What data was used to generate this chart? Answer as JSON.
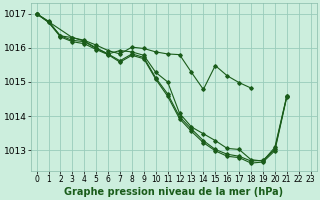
{
  "background_color": "#cceedd",
  "grid_color": "#99ccbb",
  "line_color": "#1a5c1a",
  "title": "Graphe pression niveau de la mer (hPa)",
  "xlim": [
    -0.5,
    23.5
  ],
  "ylim": [
    1012.4,
    1017.3
  ],
  "yticks": [
    1013,
    1014,
    1015,
    1016,
    1017
  ],
  "xticks": [
    0,
    1,
    2,
    3,
    4,
    5,
    6,
    7,
    8,
    9,
    10,
    11,
    12,
    13,
    14,
    15,
    16,
    17,
    18,
    19,
    20,
    21,
    22,
    23
  ],
  "series": [
    [
      1017.0,
      1016.75,
      1016.35,
      1016.3,
      1016.2,
      1016.0,
      1015.82,
      1015.92,
      1015.88,
      1015.78,
      1015.28,
      1015.0,
      1014.08,
      1013.68,
      1013.48,
      1013.28,
      1013.05,
      1013.02,
      1012.72,
      1012.68,
      1013.08,
      1014.58,
      null,
      null
    ],
    [
      1017.0,
      1016.78,
      1016.35,
      1016.22,
      1016.18,
      1015.98,
      1015.82,
      1015.62,
      1015.82,
      1015.72,
      1015.12,
      1014.65,
      1013.98,
      1013.62,
      1013.28,
      1013.02,
      1012.88,
      1012.82,
      1012.68,
      1012.7,
      1013.02,
      1014.58,
      null,
      null
    ],
    [
      1017.0,
      1016.75,
      1016.32,
      1016.18,
      1016.12,
      1015.95,
      1015.8,
      1015.58,
      1015.78,
      1015.68,
      1015.08,
      1014.58,
      1013.92,
      1013.55,
      1013.22,
      1012.98,
      1012.82,
      1012.78,
      1012.62,
      1012.65,
      1012.98,
      1014.55,
      null,
      null
    ],
    [
      1017.0,
      null,
      null,
      1016.3,
      1016.22,
      1016.08,
      1015.92,
      1015.82,
      1016.02,
      1015.98,
      1015.88,
      1015.82,
      1015.8,
      1015.28,
      1014.78,
      1015.48,
      1015.18,
      1014.98,
      1014.82,
      null,
      null,
      null,
      null,
      null
    ]
  ]
}
